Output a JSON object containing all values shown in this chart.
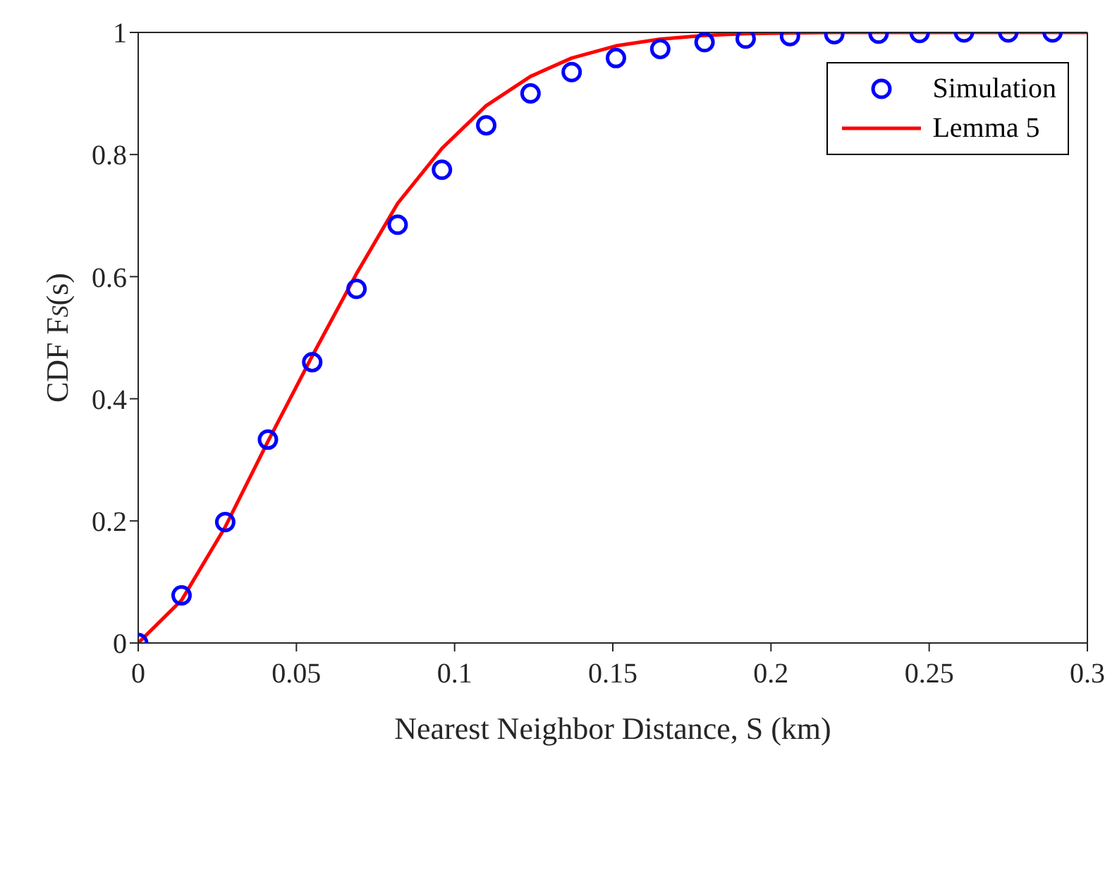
{
  "chart_data": {
    "type": "line",
    "xlabel": "Nearest Neighbor Distance, S (km)",
    "ylabel": "CDF F$_{S}$(s)",
    "xlim": [
      0,
      0.3
    ],
    "ylim": [
      0,
      1
    ],
    "xticks": [
      0,
      0.05,
      0.1,
      0.15,
      0.2,
      0.25,
      0.3
    ],
    "yticks": [
      0,
      0.2,
      0.4,
      0.6,
      0.8,
      1
    ],
    "legend": "top right",
    "series": [
      {
        "name": "Simulation",
        "type": "scatter",
        "marker": "circle",
        "color": "#0000ff",
        "x": [
          0,
          0.0137,
          0.0275,
          0.041,
          0.055,
          0.069,
          0.082,
          0.096,
          0.11,
          0.124,
          0.137,
          0.151,
          0.165,
          0.179,
          0.192,
          0.206,
          0.22,
          0.234,
          0.247,
          0.261,
          0.275,
          0.289
        ],
        "values": [
          0,
          0.078,
          0.198,
          0.333,
          0.46,
          0.58,
          0.685,
          0.775,
          0.848,
          0.9,
          0.935,
          0.958,
          0.973,
          0.984,
          0.99,
          0.994,
          0.997,
          0.998,
          0.999,
          1,
          1,
          1
        ]
      },
      {
        "name": "Lemma 5",
        "marker": "none",
        "line_style": "solid",
        "color": "#ff0000",
        "x": [
          0,
          0.0137,
          0.0275,
          0.041,
          0.055,
          0.069,
          0.082,
          0.096,
          0.11,
          0.124,
          0.137,
          0.151,
          0.165,
          0.179,
          0.192,
          0.206,
          0.22,
          0.3
        ],
        "values": [
          0,
          0.07,
          0.19,
          0.33,
          0.47,
          0.605,
          0.72,
          0.81,
          0.88,
          0.928,
          0.958,
          0.978,
          0.989,
          0.995,
          0.998,
          0.999,
          1,
          1
        ]
      }
    ]
  }
}
